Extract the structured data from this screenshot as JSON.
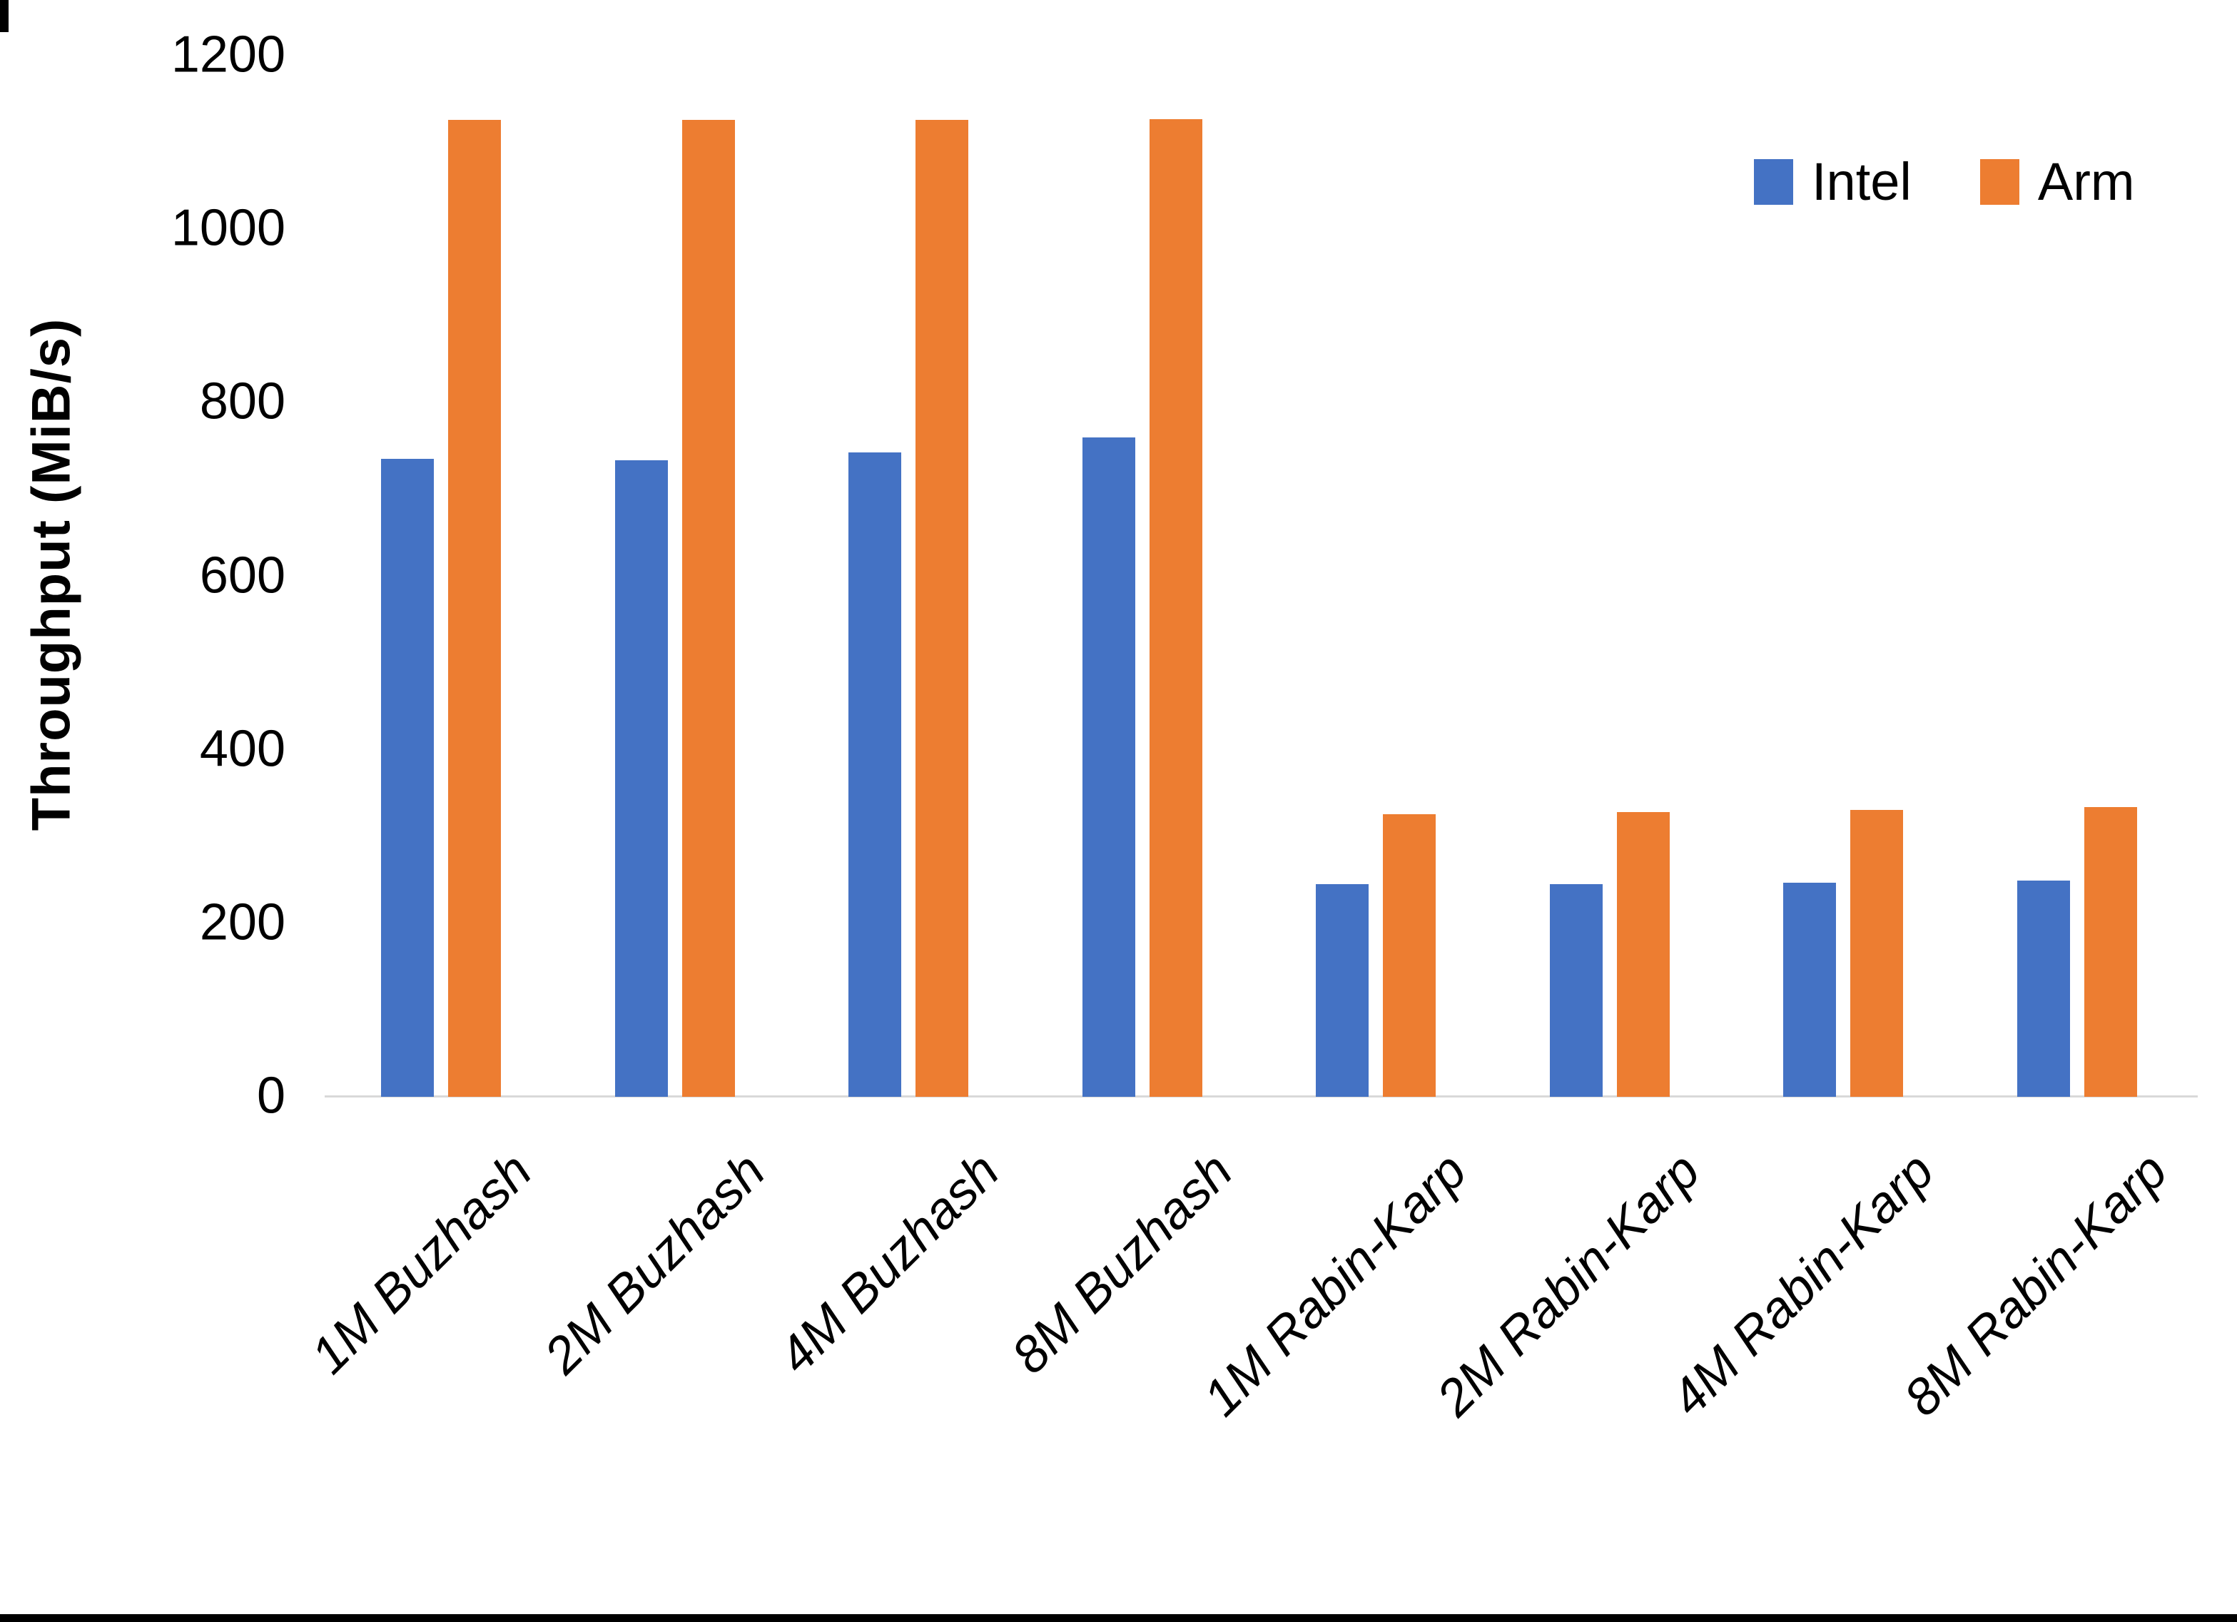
{
  "chart_data": {
    "type": "bar",
    "title": "",
    "xlabel": "",
    "ylabel": "Throughput (MiB/s)",
    "ylim": [
      0,
      1200
    ],
    "yticks": [
      0,
      200,
      400,
      600,
      800,
      1000,
      1200
    ],
    "grid": false,
    "legend_position": "top-right",
    "axis_line_color": "#d9d9d9",
    "categories": [
      "1M Buzhash",
      "2M Buzhash",
      "4M Buzhash",
      "8M Buzhash",
      "1M Rabin-Karp",
      "2M Rabin-Karp",
      "4M Rabin-Karp",
      "8M Rabin-Karp"
    ],
    "series": [
      {
        "name": "Intel",
        "color": "#4472C4",
        "values": [
          735,
          734,
          743,
          760,
          245,
          245,
          247,
          249
        ]
      },
      {
        "name": "Arm",
        "color": "#ED7D31",
        "values": [
          1126,
          1126,
          1126,
          1127,
          326,
          328,
          331,
          334
        ]
      }
    ]
  }
}
